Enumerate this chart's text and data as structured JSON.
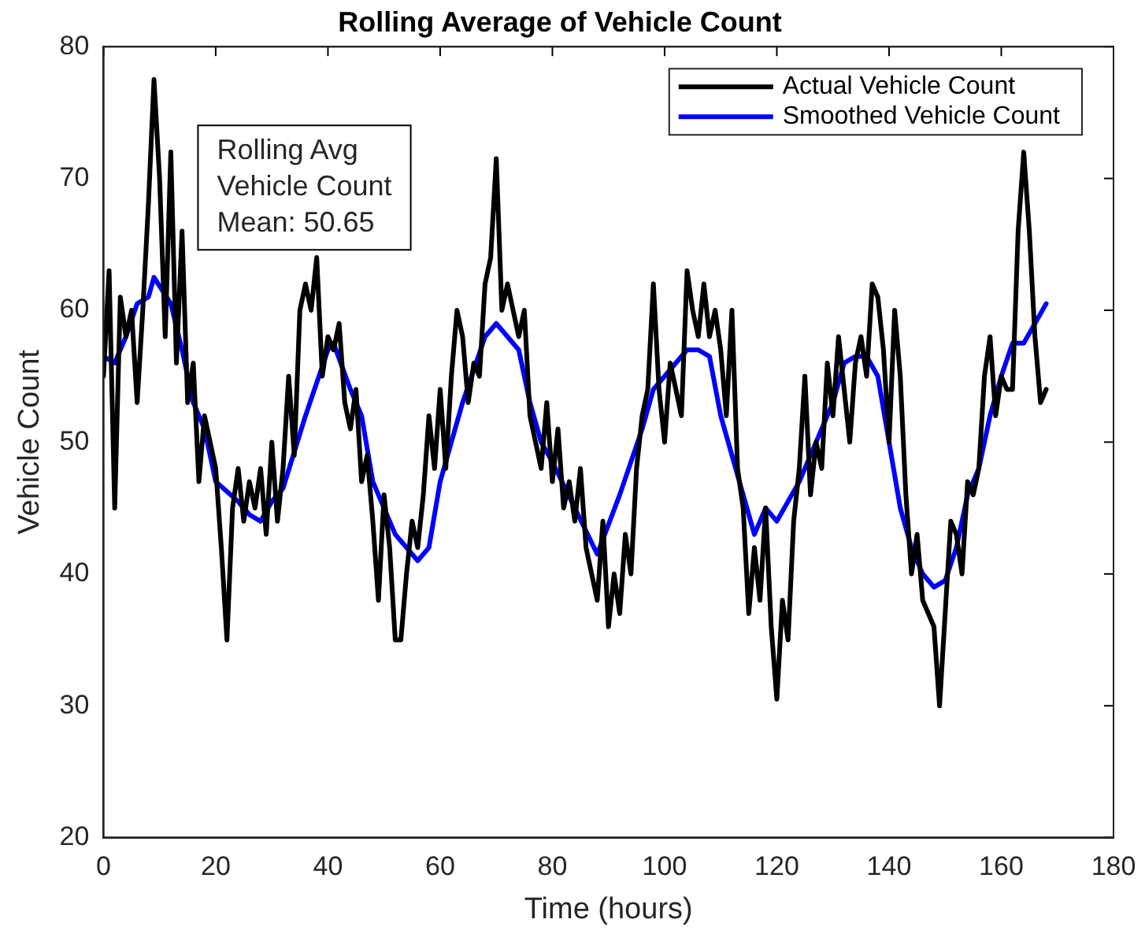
{
  "chart_data": {
    "type": "line",
    "title": "Rolling Average of Vehicle Count",
    "xlabel": "Time (hours)",
    "ylabel": "Vehicle Count",
    "xlim": [
      0,
      180
    ],
    "xticks": [
      0,
      20,
      40,
      60,
      80,
      100,
      120,
      140,
      160,
      180
    ],
    "ylim": [
      20,
      80
    ],
    "yticks": [
      20,
      30,
      40,
      50,
      60,
      70,
      80
    ],
    "grid": false,
    "legend": "top right",
    "marker": "none",
    "line_style": "solid",
    "annotations": [
      "Rolling Avg\nVehicle Count\nMean: 50.65"
    ],
    "series": [
      {
        "name": "Actual Vehicle Count",
        "color": "#000000",
        "x": [
          0,
          1,
          2,
          3,
          4,
          5,
          6,
          7,
          8,
          9,
          10,
          11,
          12,
          13,
          14,
          15,
          16,
          17,
          18,
          19,
          20,
          21,
          22,
          23,
          24,
          25,
          26,
          27,
          28,
          29,
          30,
          31,
          32,
          33,
          34,
          35,
          36,
          37,
          38,
          39,
          40,
          41,
          42,
          43,
          44,
          45,
          46,
          47,
          48,
          49,
          50,
          51,
          52,
          53,
          54,
          55,
          56,
          57,
          58,
          59,
          60,
          61,
          62,
          63,
          64,
          65,
          66,
          67,
          68,
          69,
          70,
          71,
          72,
          73,
          74,
          75,
          76,
          77,
          78,
          79,
          80,
          81,
          82,
          83,
          84,
          85,
          86,
          87,
          88,
          89,
          90,
          91,
          92,
          93,
          94,
          95,
          96,
          97,
          98,
          99,
          100,
          101,
          102,
          103,
          104,
          105,
          106,
          107,
          108,
          109,
          110,
          111,
          112,
          113,
          114,
          115,
          116,
          117,
          118,
          119,
          120,
          121,
          122,
          123,
          124,
          125,
          126,
          127,
          128,
          129,
          130,
          131,
          132,
          133,
          134,
          135,
          136,
          137,
          138,
          139,
          140,
          141,
          142,
          143,
          144,
          145,
          146,
          147,
          148,
          149,
          150,
          151,
          152,
          153,
          154,
          155,
          156,
          157,
          158,
          159,
          160,
          161,
          162,
          163,
          164,
          165,
          166,
          167,
          168
        ],
        "values": [
          55,
          63,
          45,
          61,
          58,
          60,
          53,
          60,
          68,
          77.5,
          70,
          58,
          72,
          56,
          66,
          53,
          56,
          47,
          52,
          50,
          48,
          42,
          35,
          45,
          48,
          44,
          47,
          45,
          48,
          43,
          50,
          44,
          48,
          55,
          49,
          60,
          62,
          60,
          64,
          55,
          58,
          57,
          59,
          53,
          51,
          54,
          47,
          49,
          44,
          38,
          46,
          42,
          35,
          35,
          40,
          44,
          42,
          46,
          52,
          48,
          54,
          48,
          55,
          60,
          58,
          53,
          56,
          55,
          62,
          64,
          71.5,
          60,
          62,
          60,
          58,
          60,
          52,
          50,
          48,
          53,
          47,
          51,
          45,
          47,
          44,
          48,
          42,
          40,
          38,
          44,
          36,
          40,
          37,
          43,
          40,
          48,
          52,
          54,
          62,
          54,
          50,
          56,
          54,
          52,
          63,
          60,
          58,
          62,
          58,
          60,
          57,
          52,
          60,
          48,
          45,
          37,
          42,
          38,
          45,
          36,
          30.5,
          38,
          35,
          44,
          48,
          55,
          46,
          50,
          48,
          56,
          52,
          58,
          54,
          50,
          56,
          58,
          55,
          62,
          61,
          57,
          50,
          60,
          55,
          46,
          40,
          43,
          38,
          37,
          36,
          30,
          37,
          44,
          43,
          40,
          47,
          46,
          48,
          55,
          58,
          52,
          55,
          54,
          54,
          66,
          72,
          66,
          58,
          53,
          54
        ]
      },
      {
        "name": "Smoothed Vehicle Count",
        "color": "#0000ff",
        "x": [
          0,
          2,
          4,
          6,
          8,
          9,
          12,
          14,
          16,
          18,
          20,
          24,
          26,
          28,
          30,
          32,
          36,
          40,
          41,
          44,
          46,
          48,
          52,
          56,
          58,
          60,
          64,
          68,
          70,
          72,
          74,
          76,
          78,
          80,
          84,
          88,
          92,
          96,
          98,
          100,
          102,
          104,
          106,
          108,
          110,
          112,
          114,
          116,
          118,
          120,
          124,
          128,
          130,
          132,
          134,
          136,
          138,
          140,
          142,
          144,
          146,
          148,
          150,
          152,
          154,
          156,
          158,
          160,
          162,
          164,
          166,
          168
        ],
        "values": [
          56.5,
          56,
          58,
          60.5,
          61,
          62.5,
          60.5,
          57,
          53,
          51,
          47,
          45.5,
          44.5,
          44,
          45.5,
          46.5,
          52,
          57,
          57.5,
          54,
          52,
          47,
          43,
          41,
          42,
          47,
          53,
          58,
          59,
          58,
          57,
          53,
          50,
          48.5,
          45,
          41.5,
          46,
          51,
          54,
          55,
          56,
          57,
          57,
          56.5,
          52,
          49,
          46,
          43,
          45,
          44,
          47,
          51,
          53,
          56,
          56.5,
          56.5,
          55,
          50,
          45,
          42,
          40,
          39,
          39.5,
          42,
          46,
          48,
          52,
          55,
          57.5,
          57.5,
          59,
          60.5
        ]
      }
    ]
  }
}
